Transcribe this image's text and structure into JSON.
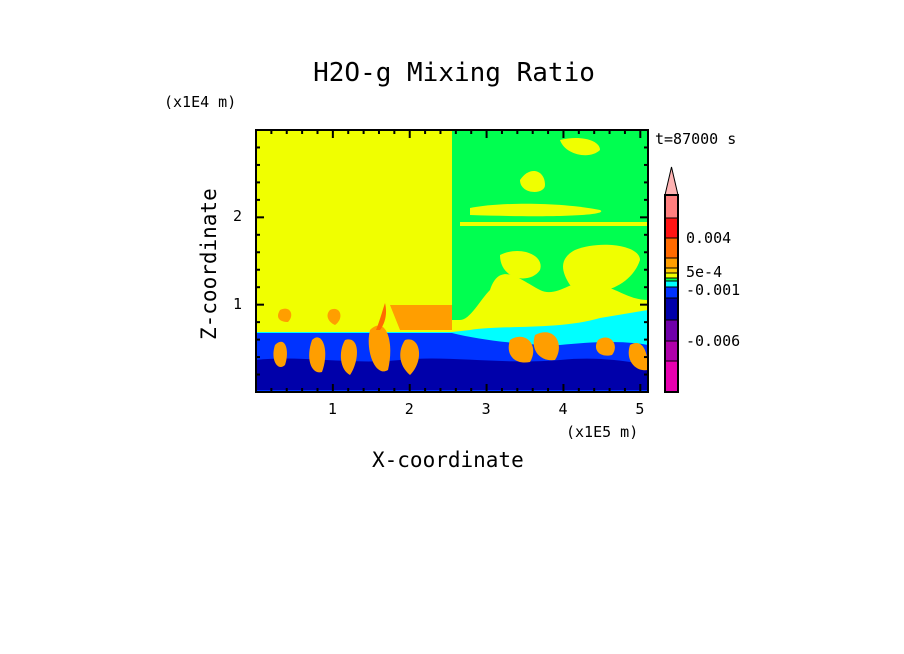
{
  "chart_data": {
    "type": "heatmap",
    "title": "H2O-g Mixing Ratio",
    "xlabel": "X-coordinate",
    "ylabel": "Z-coordinate",
    "x_unit": "(x1E5 m)",
    "y_unit": "(x1E4 m)",
    "time_label": "t=87000 s",
    "xlim": [
      0,
      5.1
    ],
    "ylim": [
      0,
      3.0
    ],
    "xticks": [
      "1",
      "2",
      "3",
      "4",
      "5"
    ],
    "xtick_values": [
      1,
      2,
      3,
      4,
      5
    ],
    "yticks": [
      "1",
      "2"
    ],
    "ytick_values": [
      1,
      2
    ],
    "colorbar": {
      "labels": [
        "0.004",
        "5e-4",
        "-0.001",
        "-0.006"
      ],
      "colors": [
        "#ff7f7f",
        "#ff1414",
        "#ff6a00",
        "#ff9e00",
        "#ffcc00",
        "#f0ff00",
        "#00ff50",
        "#00ffff",
        "#0033ff",
        "#0000aa",
        "#7000aa",
        "#b000aa",
        "#e800b0"
      ],
      "extend_color": "#ffb3b3"
    }
  }
}
